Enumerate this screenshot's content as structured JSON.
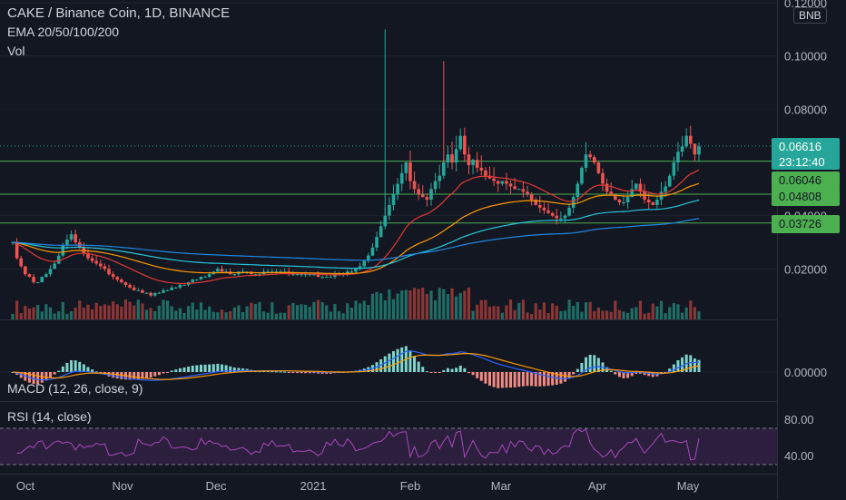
{
  "header": {
    "title": "CAKE / Binance Coin, 1D, BINANCE",
    "ema_label": "EMA 20/50/100/200",
    "vol_label": "Vol",
    "currency": "BNB"
  },
  "macd_label": "MACD (12, 26, close, 9)",
  "rsi_label": "RSI (14, close)",
  "price_axis": {
    "ticks": [
      "0.12000",
      "0.10000",
      "0.08000",
      "0.04000",
      "0.02000"
    ],
    "tick_values": [
      0.12,
      0.1,
      0.08,
      0.04,
      0.02
    ]
  },
  "macd_axis": {
    "ticks": [
      "0.00000"
    ]
  },
  "rsi_axis": {
    "ticks": [
      "80.00",
      "40.00"
    ]
  },
  "price_labels": {
    "current": "0.06616",
    "countdown": "23:12:40",
    "levels": [
      "0.06046",
      "0.04808",
      "0.03726"
    ]
  },
  "time_axis": {
    "labels": [
      "Oct",
      "Nov",
      "Dec",
      "2021",
      "Feb",
      "Mar",
      "Apr",
      "May"
    ]
  },
  "colors": {
    "background": "#131722",
    "up": "#26a69a",
    "down": "#ef5350",
    "level_line": "#4caf50",
    "ema20": "#e53935",
    "ema50": "#ff9800",
    "ema100": "#26c6da",
    "ema200": "#1e88e5",
    "macd": "#2962ff",
    "signal": "#ff9800",
    "rsi": "#ab47bc",
    "current_label": "#26a69a",
    "level_label": "#4caf50"
  },
  "chart_data": {
    "type": "candlestick",
    "price_level_lines": [
      0.06046,
      0.04808,
      0.03726
    ],
    "current_price": 0.06616,
    "ylim": [
      0,
      0.12
    ],
    "macd_zero": 0,
    "rsi_levels": [
      70,
      30
    ],
    "rsi_ticks": [
      80,
      40
    ],
    "close": [
      0.03,
      0.024,
      0.021,
      0.018,
      0.017,
      0.015,
      0.015,
      0.017,
      0.018,
      0.02,
      0.022,
      0.025,
      0.029,
      0.031,
      0.033,
      0.03,
      0.028,
      0.026,
      0.024,
      0.023,
      0.022,
      0.021,
      0.02,
      0.018,
      0.017,
      0.016,
      0.015,
      0.014,
      0.013,
      0.012,
      0.012,
      0.011,
      0.011,
      0.01,
      0.011,
      0.011,
      0.012,
      0.012,
      0.013,
      0.013,
      0.014,
      0.014,
      0.015,
      0.016,
      0.016,
      0.017,
      0.017,
      0.018,
      0.019,
      0.02,
      0.019,
      0.019,
      0.018,
      0.018,
      0.019,
      0.019,
      0.019,
      0.018,
      0.018,
      0.018,
      0.019,
      0.019,
      0.019,
      0.019,
      0.019,
      0.019,
      0.018,
      0.018,
      0.018,
      0.018,
      0.018,
      0.018,
      0.018,
      0.017,
      0.017,
      0.017,
      0.017,
      0.018,
      0.018,
      0.018,
      0.019,
      0.019,
      0.02,
      0.021,
      0.023,
      0.025,
      0.028,
      0.032,
      0.036,
      0.04,
      0.044,
      0.048,
      0.052,
      0.056,
      0.06,
      0.053,
      0.05,
      0.048,
      0.047,
      0.046,
      0.05,
      0.053,
      0.055,
      0.06,
      0.063,
      0.06,
      0.065,
      0.07,
      0.063,
      0.059,
      0.061,
      0.058,
      0.057,
      0.055,
      0.054,
      0.053,
      0.052,
      0.053,
      0.052,
      0.051,
      0.05,
      0.05,
      0.049,
      0.048,
      0.046,
      0.044,
      0.043,
      0.042,
      0.041,
      0.04,
      0.039,
      0.039,
      0.04,
      0.043,
      0.047,
      0.052,
      0.058,
      0.063,
      0.062,
      0.06,
      0.056,
      0.052,
      0.049,
      0.048,
      0.046,
      0.045,
      0.045,
      0.047,
      0.05,
      0.052,
      0.049,
      0.046,
      0.045,
      0.044,
      0.046,
      0.049,
      0.051,
      0.055,
      0.06,
      0.064,
      0.066,
      0.07,
      0.067,
      0.063,
      0.066
    ]
  }
}
